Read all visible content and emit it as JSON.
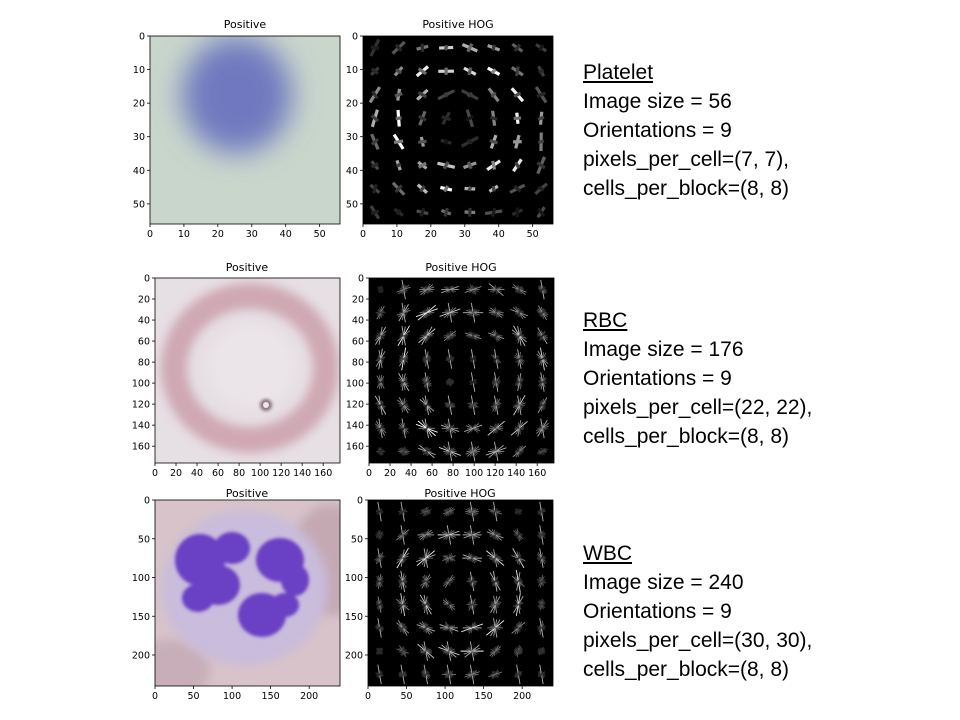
{
  "panels": [
    {
      "key": "platelet",
      "title_left": "Positive",
      "title_right": "Positive HOG",
      "yticks": [
        "0",
        "10",
        "20",
        "30",
        "40",
        "50"
      ],
      "xticks": [
        "0",
        "10",
        "20",
        "30",
        "40",
        "50"
      ],
      "label": {
        "title": "Platelet",
        "size": "Image size  = 56",
        "orientations": "Orientations = 9",
        "ppc": "pixels_per_cell=(7, 7),",
        "cpb": "cells_per_block=(8, 8)"
      }
    },
    {
      "key": "rbc",
      "title_left": "Positive",
      "title_right": "Positive HOG",
      "yticks": [
        "0",
        "20",
        "40",
        "60",
        "80",
        "100",
        "120",
        "140",
        "160"
      ],
      "xticks": [
        "0",
        "20",
        "40",
        "60",
        "80",
        "100",
        "120",
        "140",
        "160"
      ],
      "label": {
        "title": "RBC",
        "size": "Image size  = 176",
        "orientations": "Orientations = 9",
        "ppc": "pixels_per_cell=(22, 22),",
        "cpb": "cells_per_block=(8, 8)"
      }
    },
    {
      "key": "wbc",
      "title_left": "Positive",
      "title_right": "Positive HOG",
      "yticks": [
        "0",
        "50",
        "100",
        "150",
        "200"
      ],
      "xticks": [
        "0",
        "50",
        "100",
        "150",
        "200"
      ],
      "label": {
        "title": "WBC",
        "size": "Image size  = 240",
        "orientations": "Orientations = 9",
        "ppc": "pixels_per_cell=(30, 30),",
        "cpb": "cells_per_block=(8, 8)"
      }
    }
  ],
  "colors": {
    "platelet_bg": "#c9d6cc",
    "platelet_cell": "#6f79bf",
    "rbc_bg": "#e6dfe4",
    "rbc_ring": "#cfa8b3",
    "wbc_bg": "#d7c3c9",
    "wbc_cyto": "#c9bcdc",
    "wbc_nucleus": "#6a3fc4",
    "hog_bg": "#000000"
  }
}
